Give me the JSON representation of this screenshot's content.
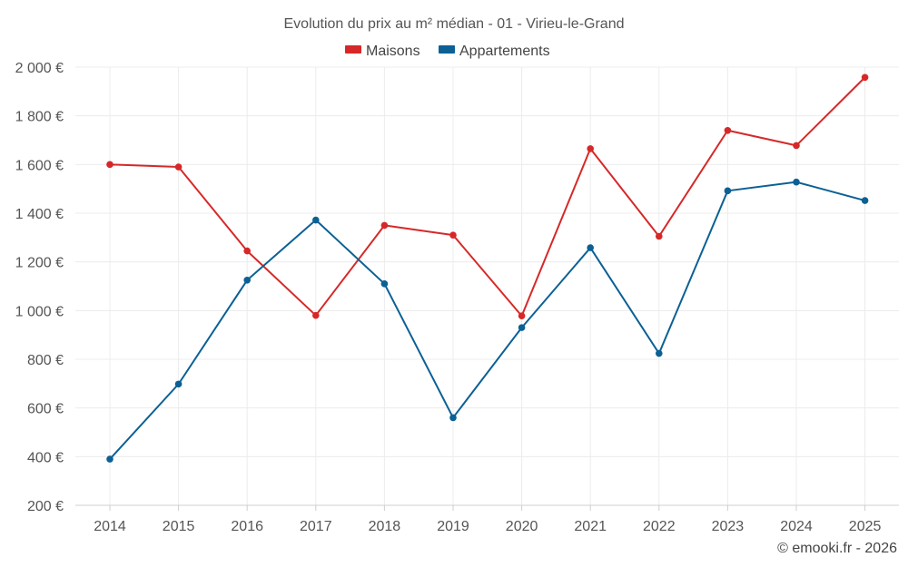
{
  "chart_data": {
    "type": "line",
    "title": "Evolution du prix au m² médian - 01 - Virieu-le-Grand",
    "categories": [
      "2014",
      "2015",
      "2016",
      "2017",
      "2018",
      "2019",
      "2020",
      "2021",
      "2022",
      "2023",
      "2024",
      "2025"
    ],
    "series": [
      {
        "name": "Maisons",
        "color": "#d62828",
        "values": [
          1600,
          1590,
          1245,
          980,
          1350,
          1310,
          978,
          1665,
          1305,
          1740,
          1678,
          1958
        ]
      },
      {
        "name": "Appartements",
        "color": "#0b6094",
        "values": [
          390,
          698,
          1125,
          1372,
          1110,
          560,
          930,
          1258,
          824,
          1492,
          1528,
          1452
        ]
      }
    ],
    "ylim": [
      200,
      2000
    ],
    "yticks": [
      200,
      400,
      600,
      800,
      1000,
      1200,
      1400,
      1600,
      1800,
      2000
    ],
    "ytick_labels": [
      "200 €",
      "400 €",
      "600 €",
      "800 €",
      "1 000 €",
      "1 200 €",
      "1 400 €",
      "1 600 €",
      "1 800 €",
      "2 000 €"
    ],
    "xlabel": "",
    "ylabel": "",
    "grid": true,
    "legend_position": "top-center"
  },
  "credit": "© emooki.fr - 2026"
}
